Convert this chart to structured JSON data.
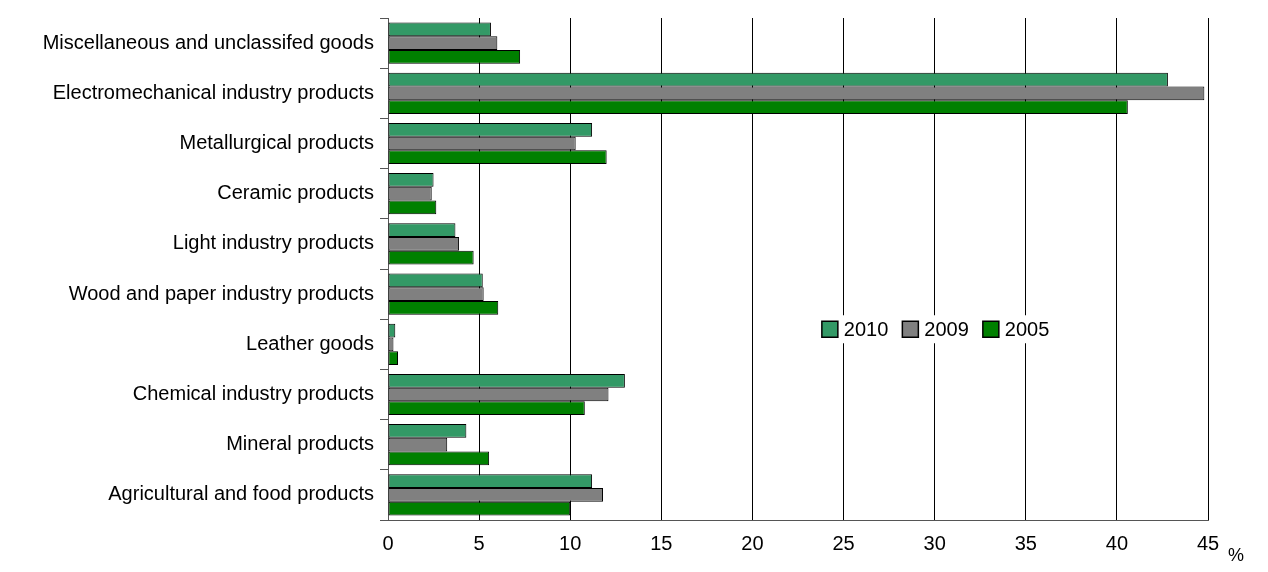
{
  "chart_data": {
    "type": "bar",
    "orientation": "horizontal",
    "xlabel": "%",
    "categories": [
      "Miscellaneous and unclassifed goods",
      "Electromechanical industry products",
      "Metallurgical products",
      "Ceramic products",
      "Light industry products",
      "Wood and paper industry products",
      "Leather goods",
      "Chemical industry products",
      "Mineral products",
      "Agricultural and food products"
    ],
    "series": [
      {
        "name": "2010",
        "color": "#339966",
        "values": [
          5.65,
          42.8,
          11.2,
          2.5,
          3.7,
          5.2,
          0.4,
          13.0,
          4.3,
          11.2
        ]
      },
      {
        "name": "2009",
        "color": "#808080",
        "values": [
          6.0,
          44.8,
          10.3,
          2.4,
          3.9,
          5.25,
          0.3,
          12.1,
          3.25,
          11.8
        ]
      },
      {
        "name": "2005",
        "color": "#008000",
        "values": [
          7.25,
          40.6,
          12.0,
          2.65,
          4.7,
          6.05,
          0.55,
          10.8,
          5.55,
          10.0
        ]
      }
    ],
    "xlim": [
      0,
      45
    ],
    "xticks": [
      0,
      5,
      10,
      15,
      20,
      25,
      30,
      35,
      40,
      45
    ],
    "grid": "x",
    "legend": "right"
  }
}
